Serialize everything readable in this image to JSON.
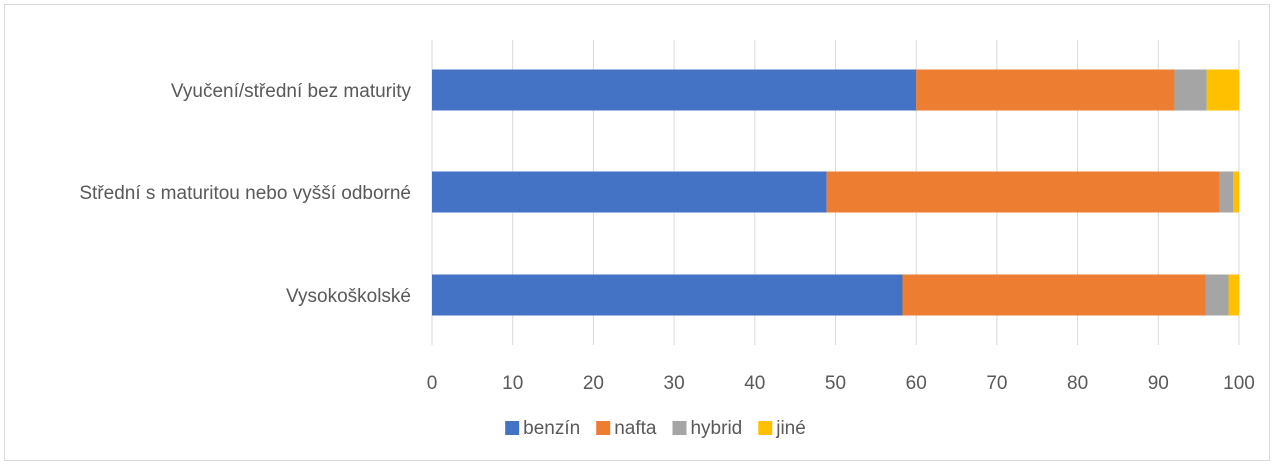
{
  "chart_data": {
    "type": "bar",
    "orientation": "horizontal",
    "stacked": true,
    "categories": [
      "Vyučení/střední bez maturity",
      "Střední s maturitou nebo vyšší odborné",
      "Vysokoškolské"
    ],
    "series": [
      {
        "name": "benzín",
        "color": "#4472C4",
        "values": [
          60.0,
          48.9,
          58.3
        ]
      },
      {
        "name": "nafta",
        "color": "#ED7D31",
        "values": [
          32.0,
          48.7,
          37.6
        ]
      },
      {
        "name": "hybrid",
        "color": "#A5A5A5",
        "values": [
          4.0,
          1.7,
          2.8
        ]
      },
      {
        "name": "jiné",
        "color": "#FFC000",
        "values": [
          4.0,
          0.7,
          1.3
        ]
      }
    ],
    "xlim": [
      0,
      100
    ],
    "xticks": [
      0,
      10,
      20,
      30,
      40,
      50,
      60,
      70,
      80,
      90,
      100
    ],
    "grid": true,
    "legend_position": "bottom",
    "title": "",
    "xlabel": "",
    "ylabel": ""
  }
}
